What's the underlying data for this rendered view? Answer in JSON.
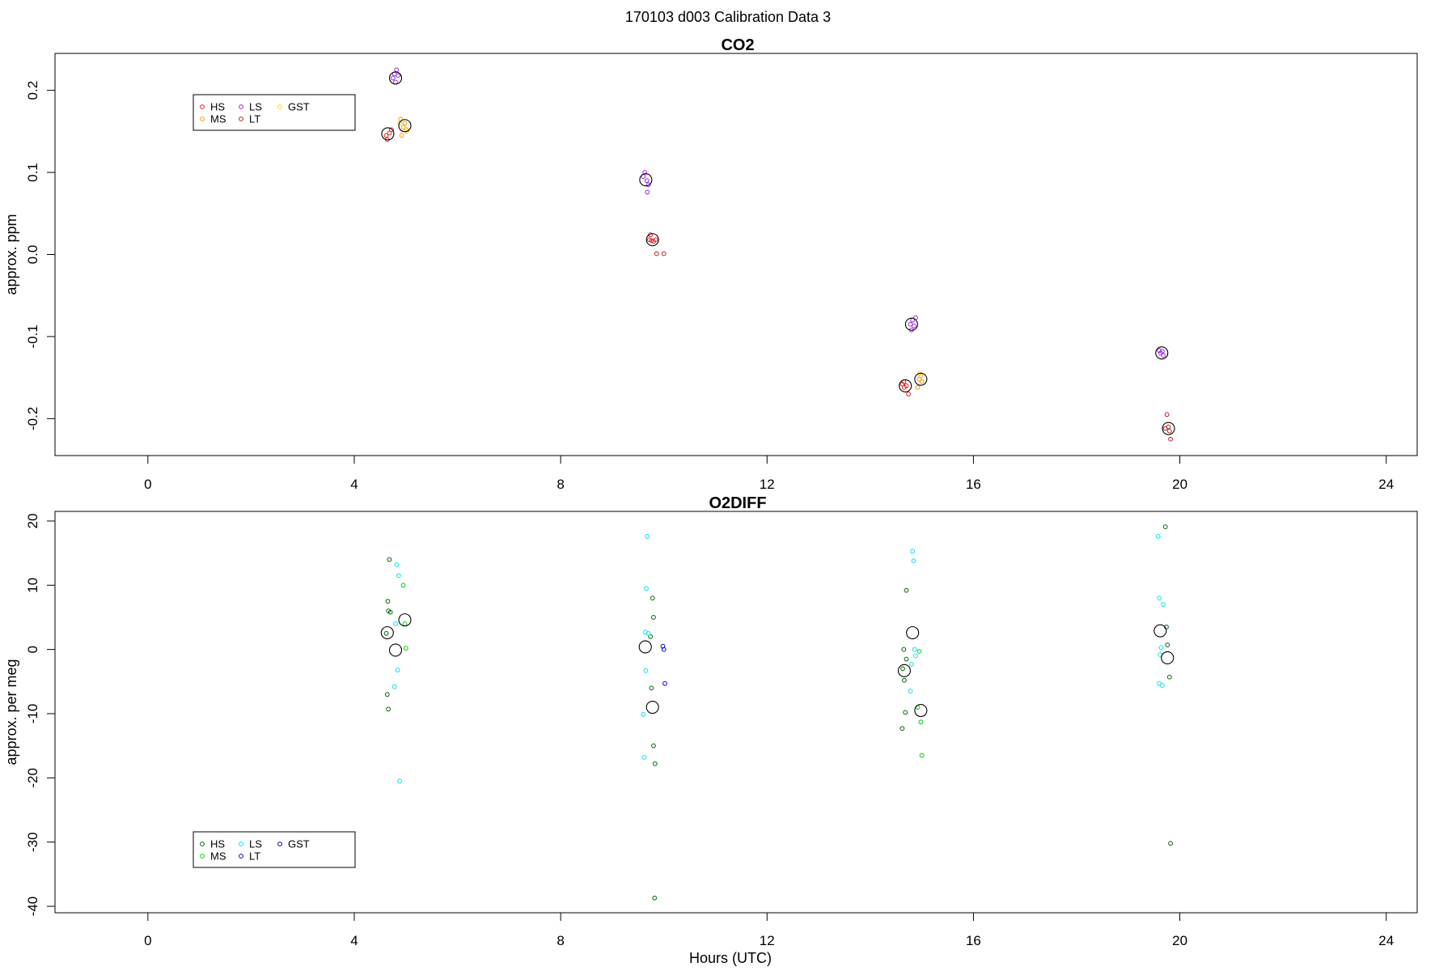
{
  "figure": {
    "main_title": "170103   d003   Calibration Data 3",
    "xlabel": "Hours (UTC)"
  },
  "chart_data": [
    {
      "type": "scatter",
      "title": "CO2",
      "ylabel": "approx. ppm",
      "xlim": [
        -1.8,
        24.6
      ],
      "ylim": [
        -0.245,
        0.245
      ],
      "x_ticks": [
        0,
        4,
        8,
        12,
        16,
        20,
        24
      ],
      "y_ticks": [
        -0.2,
        -0.1,
        0.0,
        0.1,
        0.2
      ],
      "y_tick_labels": [
        "-0.2",
        "-0.1",
        "0.0",
        "0.1",
        "0.2"
      ],
      "grid": false,
      "legend": {
        "placement": "top-left",
        "columns": 3
      },
      "series": [
        {
          "name": "HS",
          "color": "#e41a1c",
          "points": [
            [
              4.62,
              0.145
            ],
            [
              4.64,
              0.14
            ],
            [
              4.68,
              0.148
            ],
            [
              4.72,
              0.152
            ],
            [
              9.72,
              0.018
            ],
            [
              9.76,
              0.017
            ],
            [
              9.8,
              0.016
            ],
            [
              9.84,
              0.018
            ],
            [
              9.74,
              0.024
            ],
            [
              14.62,
              -0.158
            ],
            [
              14.66,
              -0.162
            ],
            [
              14.7,
              -0.16
            ],
            [
              14.65,
              -0.155
            ],
            [
              14.74,
              -0.17
            ]
          ]
        },
        {
          "name": "MS",
          "color": "#ff9900",
          "points": [
            [
              4.95,
              0.155
            ],
            [
              4.98,
              0.16
            ],
            [
              5.01,
              0.152
            ],
            [
              4.9,
              0.165
            ],
            [
              4.92,
              0.145
            ],
            [
              14.95,
              -0.152
            ],
            [
              14.98,
              -0.148
            ],
            [
              15.0,
              -0.155
            ],
            [
              14.92,
              -0.162
            ]
          ]
        },
        {
          "name": "LS",
          "color": "#a020f0",
          "points": [
            [
              4.75,
              0.215
            ],
            [
              4.78,
              0.22
            ],
            [
              4.82,
              0.225
            ],
            [
              4.8,
              0.21
            ],
            [
              4.85,
              0.218
            ],
            [
              9.6,
              0.095
            ],
            [
              9.63,
              0.1
            ],
            [
              9.67,
              0.09
            ],
            [
              9.7,
              0.085
            ],
            [
              9.68,
              0.076
            ],
            [
              14.78,
              -0.085
            ],
            [
              14.82,
              -0.08
            ],
            [
              14.85,
              -0.087
            ],
            [
              14.8,
              -0.092
            ],
            [
              14.88,
              -0.077
            ],
            [
              19.6,
              -0.117
            ],
            [
              19.63,
              -0.12
            ],
            [
              19.68,
              -0.123
            ],
            [
              19.66,
              -0.118
            ]
          ]
        },
        {
          "name": "LT",
          "color": "#b22222",
          "points": [
            [
              9.86,
              0.001
            ],
            [
              10.0,
              0.001
            ],
            [
              19.75,
              -0.195
            ],
            [
              19.78,
              -0.21
            ],
            [
              19.8,
              -0.215
            ],
            [
              19.82,
              -0.225
            ],
            [
              19.72,
              -0.212
            ]
          ]
        },
        {
          "name": "GST",
          "color": "#ffd700",
          "points": [
            [
              4.88,
              0.16
            ],
            [
              5.02,
              0.15
            ],
            [
              14.96,
              -0.145
            ]
          ]
        },
        {
          "name": "",
          "color": "#000000",
          "role": "mean",
          "points": [
            [
              4.65,
              0.147
            ],
            [
              4.8,
              0.215
            ],
            [
              4.98,
              0.157
            ],
            [
              9.65,
              0.091
            ],
            [
              9.78,
              0.018
            ],
            [
              14.68,
              -0.16
            ],
            [
              14.8,
              -0.085
            ],
            [
              14.98,
              -0.152
            ],
            [
              19.65,
              -0.12
            ],
            [
              19.78,
              -0.212
            ]
          ]
        }
      ]
    },
    {
      "type": "scatter",
      "title": "O2DIFF",
      "ylabel": "approx. per meg",
      "xlim": [
        -1.8,
        24.6
      ],
      "ylim": [
        -41.0,
        21.5
      ],
      "x_ticks": [
        0,
        4,
        8,
        12,
        16,
        20,
        24
      ],
      "y_ticks": [
        -40,
        -30,
        -20,
        -10,
        0,
        10,
        20
      ],
      "y_tick_labels": [
        "-40",
        "-30",
        "-20",
        "-10",
        "0",
        "10",
        "20"
      ],
      "grid": false,
      "legend": {
        "placement": "bottom-left",
        "columns": 3
      },
      "series": [
        {
          "name": "HS",
          "color": "#006400",
          "points": [
            [
              4.68,
              14.0
            ],
            [
              4.65,
              7.5
            ],
            [
              4.66,
              6.0
            ],
            [
              4.7,
              5.8
            ],
            [
              4.62,
              2.5
            ],
            [
              4.64,
              -7.0
            ],
            [
              4.66,
              -9.3
            ],
            [
              9.78,
              8.0
            ],
            [
              9.8,
              5.0
            ],
            [
              9.74,
              2.0
            ],
            [
              9.76,
              -6.0
            ],
            [
              9.8,
              -15.0
            ],
            [
              9.83,
              -17.8
            ],
            [
              9.82,
              -38.7
            ],
            [
              14.7,
              9.2
            ],
            [
              14.65,
              0.0
            ],
            [
              14.7,
              -1.5
            ],
            [
              14.63,
              -3.0
            ],
            [
              14.66,
              -4.8
            ],
            [
              14.68,
              -9.8
            ],
            [
              14.62,
              -12.3
            ],
            [
              19.72,
              19.1
            ],
            [
              19.74,
              3.5
            ],
            [
              19.76,
              0.7
            ],
            [
              19.8,
              -4.3
            ],
            [
              19.82,
              -30.2
            ]
          ]
        },
        {
          "name": "MS",
          "color": "#00cd00",
          "points": [
            [
              4.95,
              10.0
            ],
            [
              4.98,
              4.0
            ],
            [
              5.0,
              0.2
            ],
            [
              14.95,
              -0.3
            ],
            [
              14.98,
              -11.3
            ],
            [
              15.0,
              -16.5
            ],
            [
              14.92,
              -9.0
            ]
          ]
        },
        {
          "name": "LS",
          "color": "#00e5ee",
          "points": [
            [
              4.82,
              13.2
            ],
            [
              4.86,
              11.5
            ],
            [
              4.8,
              4.0
            ],
            [
              4.84,
              -3.2
            ],
            [
              4.78,
              -5.8
            ],
            [
              4.88,
              -20.5
            ],
            [
              9.68,
              17.6
            ],
            [
              9.66,
              9.5
            ],
            [
              9.64,
              2.7
            ],
            [
              9.7,
              2.5
            ],
            [
              9.65,
              -3.3
            ],
            [
              9.6,
              -10.1
            ],
            [
              9.62,
              -16.8
            ],
            [
              14.82,
              15.3
            ],
            [
              14.84,
              13.8
            ],
            [
              14.86,
              0.0
            ],
            [
              14.88,
              -1.0
            ],
            [
              14.8,
              -2.3
            ],
            [
              14.78,
              -6.5
            ],
            [
              19.6,
              8.0
            ],
            [
              19.68,
              7.0
            ],
            [
              19.64,
              0.3
            ],
            [
              19.62,
              -0.8
            ],
            [
              19.6,
              -5.3
            ],
            [
              19.66,
              -5.6
            ],
            [
              19.58,
              17.6
            ]
          ]
        },
        {
          "name": "LT",
          "color": "#0000cd",
          "points": [
            [
              9.98,
              0.5
            ],
            [
              10.0,
              0.0
            ],
            [
              10.02,
              -5.3
            ]
          ]
        },
        {
          "name": "GST",
          "color": "#00008b",
          "points": []
        },
        {
          "name": "",
          "color": "#000000",
          "role": "mean",
          "points": [
            [
              4.64,
              2.6
            ],
            [
              4.8,
              -0.1
            ],
            [
              4.98,
              4.6
            ],
            [
              9.64,
              0.4
            ],
            [
              9.78,
              -9.0
            ],
            [
              14.66,
              -3.3
            ],
            [
              14.82,
              2.6
            ],
            [
              14.98,
              -9.5
            ],
            [
              19.62,
              2.9
            ],
            [
              19.76,
              -1.3
            ]
          ]
        }
      ]
    }
  ]
}
